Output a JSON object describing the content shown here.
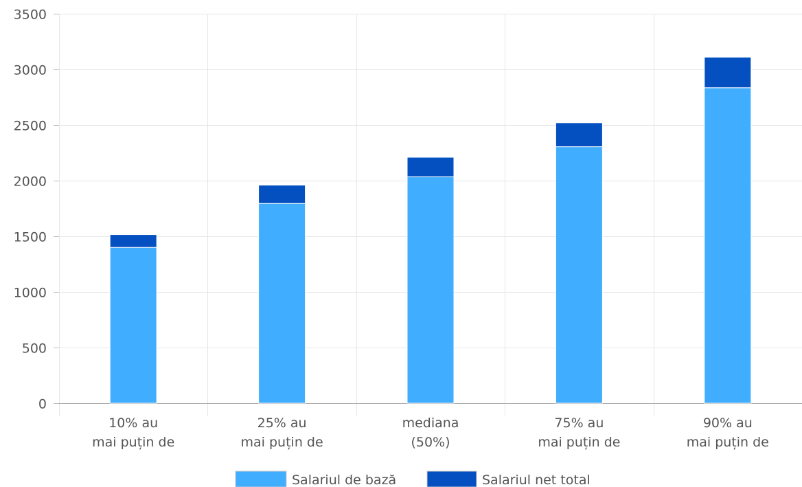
{
  "chart_data": {
    "type": "bar",
    "stacked": true,
    "categories": [
      [
        "10% au",
        "mai puțin de"
      ],
      [
        "25% au",
        "mai puțin de"
      ],
      [
        "mediana",
        "(50%)"
      ],
      [
        "75% au",
        "mai puțin de"
      ],
      [
        "90% au",
        "mai puțin de"
      ]
    ],
    "series": [
      {
        "name": "Salariul de bază",
        "color": "#40ADFF",
        "values": [
          1400,
          1795,
          2035,
          2305,
          2835
        ]
      },
      {
        "name": "Salariul net total",
        "color": "#0550C0",
        "values": [
          115,
          165,
          175,
          215,
          275
        ]
      }
    ],
    "ylim": [
      0,
      3500
    ],
    "yticks": [
      0,
      500,
      1000,
      1500,
      2000,
      2500,
      3000,
      3500
    ],
    "grid": true,
    "legend": "bottom"
  }
}
